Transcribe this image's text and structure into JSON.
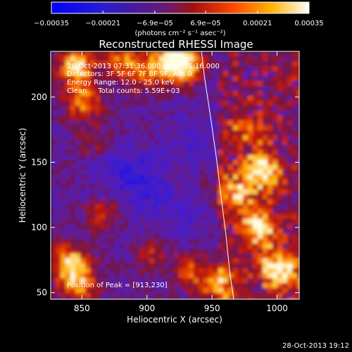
{
  "colorbar": {
    "tick_labels": [
      "−0.00035",
      "−0.00021",
      "−6.9e−05",
      "6.9e−05",
      "0.00021",
      "0.00035"
    ],
    "tick_values": [
      -0.00035,
      -0.00021,
      -6.9e-05,
      6.9e-05,
      0.00021,
      0.00035
    ],
    "range": [
      -0.00035,
      0.00035
    ],
    "unit_label": "(photons cm⁻² s⁻¹ asec⁻²)"
  },
  "chart_data": {
    "type": "heatmap",
    "title": "Reconstructed RHESSI Image",
    "xlabel": "Heliocentric X (arcsec)",
    "ylabel": "Heliocentric Y (arcsec)",
    "xlim": [
      826,
      1017
    ],
    "ylim": [
      45,
      235
    ],
    "x_ticks": [
      850,
      900,
      950,
      1000
    ],
    "x_tick_labels": [
      "850",
      "900",
      "950",
      "1000"
    ],
    "y_ticks": [
      50,
      100,
      150,
      200
    ],
    "y_tick_labels": [
      "50",
      "100",
      "150",
      "200"
    ],
    "annotations": [
      "28-Oct-2013 07:31:36.000 to 07:35:16.000",
      "Detectors: 3F 5F 6F 7F 8F 9F, Att: 0",
      "Energy Range: 12.0 - 25.0 keV",
      "Clean     Total counts: 5.59E+03"
    ],
    "peak_label": "Position of Peak = [913,230]",
    "peak_position": [
      913,
      230
    ],
    "limb_curve_x": [
      941.9,
      944.2,
      947.3,
      950.3,
      953.8,
      956.8,
      960.6,
      963.7,
      966.7
    ],
    "limb_curve_y": [
      235,
      215,
      195,
      175,
      150,
      125,
      95,
      65,
      45
    ],
    "grid": false,
    "colormap": "blue-purple-red-yellow-white"
  },
  "footer": {
    "timestamp": "28-Oct-2013 19:12"
  },
  "colors": {
    "background": "#000000",
    "foreground": "#ffffff"
  }
}
